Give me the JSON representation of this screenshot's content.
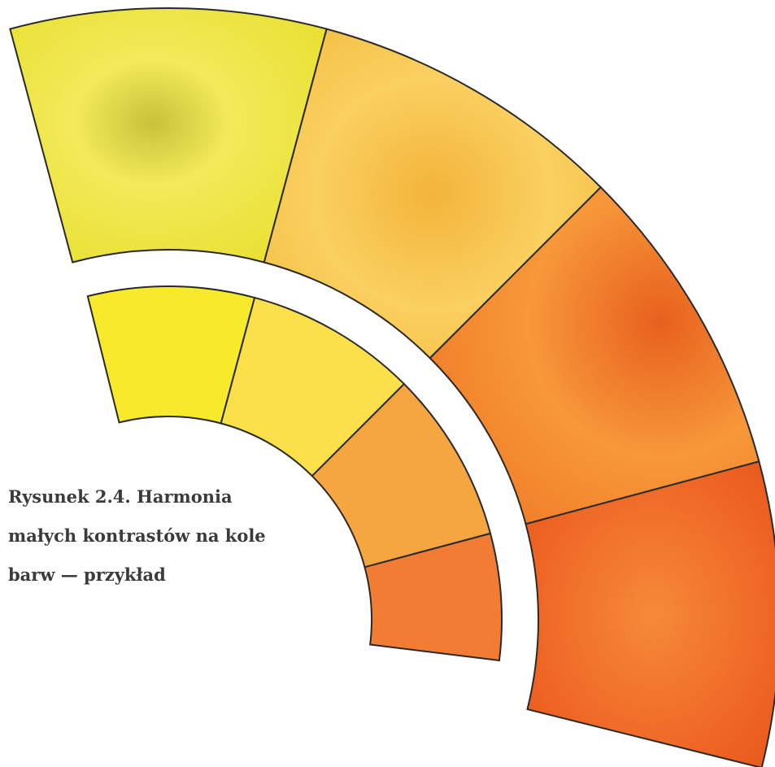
{
  "caption": {
    "lines": [
      "Rysunek 2.4. Harmonia",
      "małych kontrastów na kole",
      "barw — przykład"
    ]
  }
}
